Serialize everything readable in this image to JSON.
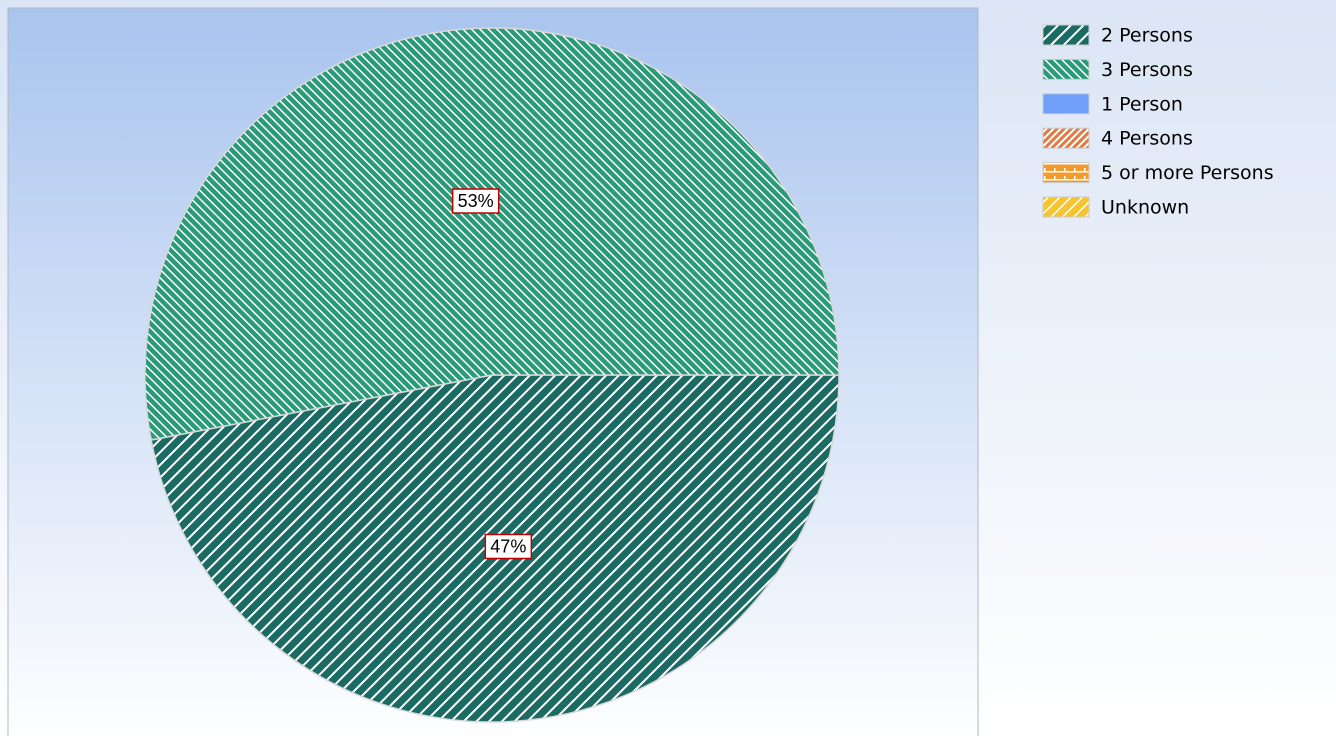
{
  "chart_data": {
    "type": "pie",
    "categories": [
      "2 Persons",
      "3 Persons",
      "1 Person",
      "4 Persons",
      "5 or more Persons",
      "Unknown"
    ],
    "values": [
      47,
      53,
      0,
      0,
      0,
      0
    ],
    "value_labels": [
      "47%",
      "53%",
      null,
      null,
      null,
      null
    ],
    "colors": [
      "#1b6b64",
      "#2a9a78",
      "#6f9ff8",
      "#e07a45",
      "#f59a2e",
      "#f5c42f"
    ],
    "legend": "right"
  }
}
